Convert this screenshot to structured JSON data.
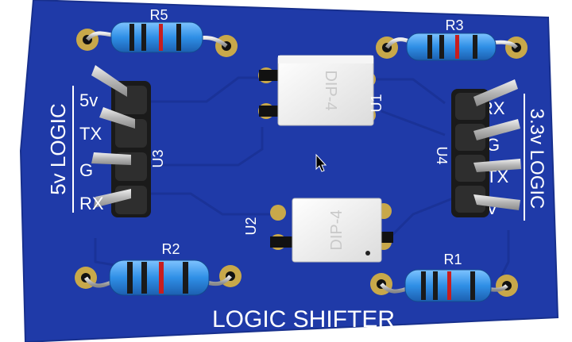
{
  "board": {
    "title": "LOGIC SHIFTER",
    "left_side_label": "5v LOGIC",
    "right_side_label": "3.3v LOGIC",
    "colors": {
      "board": "#1f3aa8",
      "silkscreen": "#ffffff",
      "pad": "#c8a84a",
      "header": "#222222",
      "pin": "#cfcfcf"
    }
  },
  "resistors": [
    {
      "ref": "R5"
    },
    {
      "ref": "R3"
    },
    {
      "ref": "R2"
    },
    {
      "ref": "R1"
    }
  ],
  "ics": [
    {
      "ref": "U1",
      "package": "DIP-4"
    },
    {
      "ref": "U2",
      "package": "DIP-4"
    }
  ],
  "headers": [
    {
      "ref": "U3",
      "pin_labels": [
        "5v",
        "TX",
        "G",
        "RX"
      ]
    },
    {
      "ref": "U4",
      "pin_labels": [
        "RX",
        "G",
        "TX",
        "V"
      ]
    }
  ],
  "cursor": {
    "icon": "mouse-pointer-icon"
  }
}
